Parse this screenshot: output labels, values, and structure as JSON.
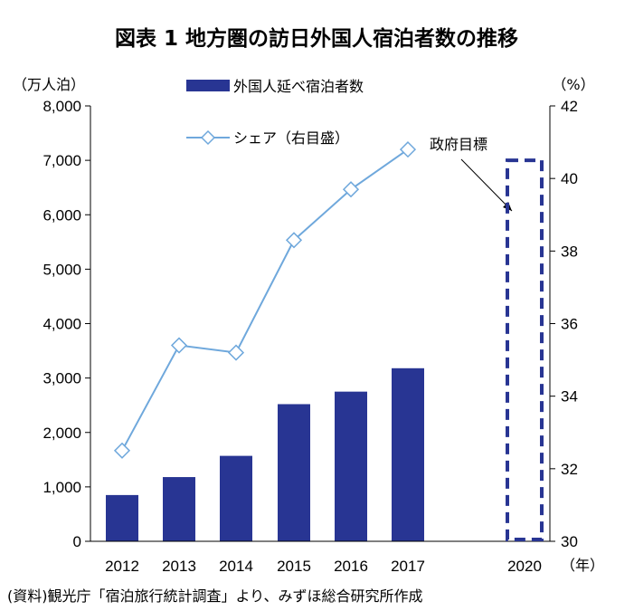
{
  "title": "図表 1 地方圏の訪日外国人宿泊者数の推移",
  "source": "(資料)観光庁「宿泊旅行統計調査」より、みずほ総合研究所作成",
  "chart_data": {
    "type": "bar",
    "categories": [
      "2012",
      "2013",
      "2014",
      "2015",
      "2016",
      "2017",
      "2020"
    ],
    "series": [
      {
        "name": "外国人延べ宿泊者数",
        "type": "bar",
        "axis": "left",
        "color": "#283593",
        "values": [
          850,
          1180,
          1570,
          2520,
          2750,
          3180,
          null
        ]
      },
      {
        "name": "シェア（右目盛）",
        "type": "line",
        "axis": "right",
        "color": "#6FA8DC",
        "marker": "diamond",
        "values": [
          32.5,
          35.4,
          35.2,
          38.3,
          39.7,
          40.8,
          null
        ]
      }
    ],
    "target": {
      "label": "政府目標",
      "category": "2020",
      "value": 7000,
      "style": "dashed-outline",
      "color": "#283593"
    },
    "y_left": {
      "unit": "（万人泊）",
      "min": 0,
      "max": 8000,
      "ticks": [
        "0",
        "1,000",
        "2,000",
        "3,000",
        "4,000",
        "5,000",
        "6,000",
        "7,000",
        "8,000"
      ]
    },
    "y_right": {
      "unit": "（%）",
      "min": 30,
      "max": 42,
      "ticks": [
        "30",
        "32",
        "34",
        "36",
        "38",
        "40",
        "42"
      ]
    },
    "x_unit": "（年）",
    "legend": {
      "position": "top-center"
    },
    "grid": false
  }
}
